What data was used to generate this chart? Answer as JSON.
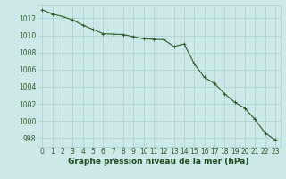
{
  "x": [
    0,
    1,
    2,
    3,
    4,
    5,
    6,
    7,
    8,
    9,
    10,
    11,
    12,
    13,
    14,
    15,
    16,
    17,
    18,
    19,
    20,
    21,
    22,
    23
  ],
  "y": [
    1013.0,
    1012.5,
    1012.2,
    1011.8,
    1011.2,
    1010.7,
    1010.2,
    1010.15,
    1010.1,
    1009.85,
    1009.6,
    1009.55,
    1009.5,
    1008.7,
    1009.0,
    1006.7,
    1005.1,
    1004.4,
    1003.2,
    1002.2,
    1001.5,
    1000.2,
    998.6,
    997.8
  ],
  "line_color": "#2d5a27",
  "marker": "+",
  "marker_size": 3,
  "line_width": 0.8,
  "bg_color": "#cce8e8",
  "grid_color": "#aacece",
  "ylabel_ticks": [
    998,
    1000,
    1002,
    1004,
    1006,
    1008,
    1010,
    1012
  ],
  "ylim": [
    997.0,
    1013.5
  ],
  "xlim": [
    -0.5,
    23.5
  ],
  "xlabel": "Graphe pression niveau de la mer (hPa)",
  "xlabel_color": "#1a4a1a",
  "xlabel_fontsize": 6.5,
  "tick_fontsize": 5.5,
  "tick_color": "#2d5a27"
}
